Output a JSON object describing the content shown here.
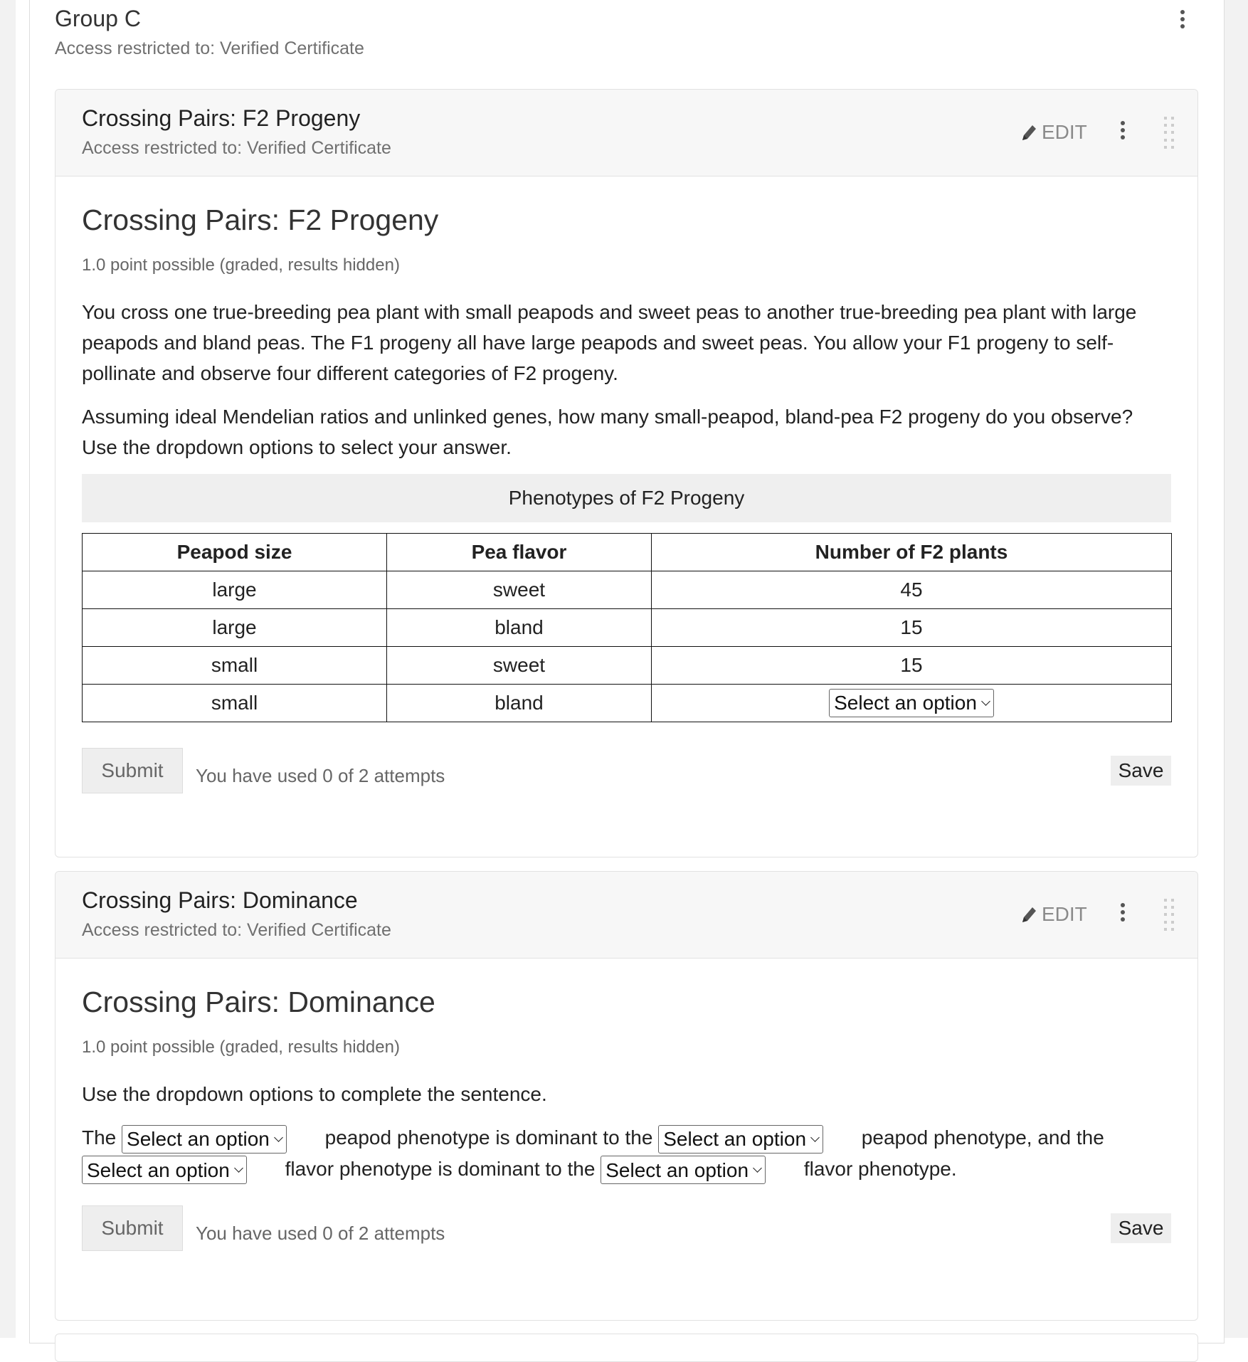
{
  "group": {
    "title": "Group C",
    "access": "Access restricted to: Verified Certificate"
  },
  "cards": [
    {
      "header_title": "Crossing Pairs: F2 Progeny",
      "access": "Access restricted to: Verified Certificate",
      "edit_label": "EDIT",
      "problem_title": "Crossing Pairs: F2 Progeny",
      "points": "1.0 point possible (graded, results hidden)",
      "paragraph1": "You cross one true-breeding pea plant with small peapods and sweet peas to another true-breeding pea plant with large peapods and bland peas. The F1 progeny all have large peapods and sweet peas. You allow your F1 progeny to self-pollinate and observe four different categories of F2 progeny.",
      "paragraph2": "Assuming ideal Mendelian ratios and unlinked genes, how many small-peapod, bland-pea F2 progeny do you observe? Use the dropdown options to select your answer.",
      "table": {
        "caption": "Phenotypes of F2 Progeny",
        "headers": [
          "Peapod size",
          "Pea flavor",
          "Number of F2 plants"
        ],
        "rows": [
          [
            "large",
            "sweet",
            "45"
          ],
          [
            "large",
            "bland",
            "15"
          ],
          [
            "small",
            "sweet",
            "15"
          ],
          [
            "small",
            "bland",
            "Select an option"
          ]
        ]
      },
      "submit_label": "Submit",
      "attempts": "You have used 0 of 2 attempts",
      "save_label": "Save"
    },
    {
      "header_title": "Crossing Pairs: Dominance",
      "access": "Access restricted to: Verified Certificate",
      "edit_label": "EDIT",
      "problem_title": "Crossing Pairs: Dominance",
      "points": "1.0 point possible (graded, results hidden)",
      "instruction": "Use the dropdown options to complete the sentence.",
      "sentence": {
        "w1": "The",
        "s1": "Select an option",
        "w2": "peapod phenotype is dominant to the",
        "s2": "Select an option",
        "w3": "peapod phenotype, and the",
        "s3": "Select an option",
        "w4": "flavor phenotype is dominant to the",
        "s4": "Select an option",
        "w5": "flavor phenotype."
      },
      "submit_label": "Submit",
      "attempts": "You have used 0 of 2 attempts",
      "save_label": "Save"
    }
  ]
}
